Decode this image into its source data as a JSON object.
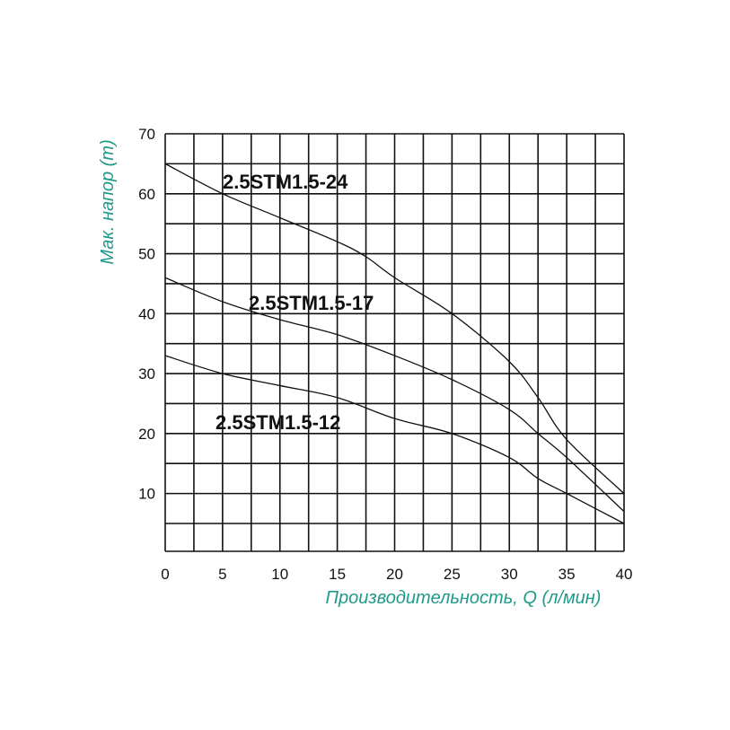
{
  "chart_data": {
    "type": "line",
    "xlabel": "Производительность, Q (л/мин)",
    "ylabel": "Мак. напор (m)",
    "xlim": [
      0,
      40
    ],
    "ylim": [
      0,
      70
    ],
    "x_ticks": [
      0,
      5,
      10,
      15,
      20,
      25,
      30,
      35,
      40
    ],
    "y_ticks": [
      10,
      20,
      30,
      40,
      50,
      60,
      70
    ],
    "x_grid_step": 2.5,
    "y_grid_step": 5,
    "grid": true,
    "label_color": "#1f9a8a",
    "line_color": "#111111",
    "series": [
      {
        "name": "2.5STM1.5-24",
        "x": [
          0,
          5,
          10,
          15,
          17.5,
          20,
          25,
          30,
          32.5,
          35,
          40
        ],
        "y": [
          65,
          60,
          56,
          52,
          49.5,
          46,
          40,
          32,
          26,
          19,
          10
        ]
      },
      {
        "name": "2.5STM1.5-17",
        "x": [
          0,
          5,
          10,
          15,
          20,
          25,
          30,
          32.5,
          35,
          40
        ],
        "y": [
          46,
          42,
          39,
          36.5,
          33,
          29,
          24,
          20,
          16,
          7
        ]
      },
      {
        "name": "2.5STM1.5-12",
        "x": [
          0,
          5,
          10,
          15,
          20,
          25,
          30,
          32.5,
          35,
          40
        ],
        "y": [
          33,
          30,
          28,
          26,
          22.5,
          20,
          16,
          12.5,
          10,
          5
        ]
      }
    ]
  }
}
